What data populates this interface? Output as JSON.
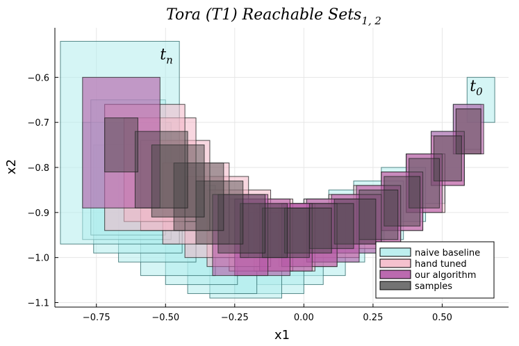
{
  "chart_data": {
    "type": "rectangles",
    "title": "Tora (T1) Reachable Sets",
    "title_subscript": "1, 2",
    "xlabel": "x1",
    "ylabel": "x2",
    "xlim": [
      -0.9,
      0.74
    ],
    "ylim": [
      -1.11,
      -0.49
    ],
    "xticks": [
      -0.75,
      -0.5,
      -0.25,
      0.0,
      0.25,
      0.5
    ],
    "xtick_labels": [
      "−0.75",
      "−0.50",
      "−0.25",
      "0.00",
      "0.25",
      "0.50"
    ],
    "yticks": [
      -0.6,
      -0.7,
      -0.8,
      -0.9,
      -1.0,
      -1.1
    ],
    "ytick_labels": [
      "−0.6",
      "−0.7",
      "−0.8",
      "−0.9",
      "−1.0",
      "−1.1"
    ],
    "grid": true,
    "legend_position": "bottom-right",
    "colors": {
      "naive": "#b2ecec",
      "naive_edge": "#2f6b6b",
      "hand": "#f3b6c6",
      "ours": "#b45aa6",
      "samples": "#444444",
      "edge": "#222222"
    },
    "annotations": [
      {
        "text": "t",
        "sub": "n",
        "x": -0.52,
        "y": -0.56
      },
      {
        "text": "t",
        "sub": "0",
        "x": 0.6,
        "y": -0.63
      }
    ],
    "series": [
      {
        "name": "naive baseline",
        "color_key": "naive",
        "opacity": 0.55,
        "rects": [
          [
            0.59,
            0.69,
            -0.7,
            -0.6
          ],
          [
            0.54,
            0.64,
            -0.76,
            -0.66
          ],
          [
            0.46,
            0.58,
            -0.83,
            -0.72
          ],
          [
            0.37,
            0.51,
            -0.88,
            -0.77
          ],
          [
            0.28,
            0.44,
            -0.92,
            -0.8
          ],
          [
            0.18,
            0.36,
            -0.96,
            -0.83
          ],
          [
            0.09,
            0.29,
            -0.99,
            -0.85
          ],
          [
            0.0,
            0.22,
            -1.01,
            -0.87
          ],
          [
            -0.08,
            0.15,
            -1.04,
            -0.88
          ],
          [
            -0.17,
            0.07,
            -1.06,
            -0.89
          ],
          [
            -0.25,
            0.0,
            -1.08,
            -0.9
          ],
          [
            -0.34,
            -0.08,
            -1.09,
            -0.9
          ],
          [
            -0.42,
            -0.17,
            -1.08,
            -0.89
          ],
          [
            -0.5,
            -0.24,
            -1.06,
            -0.87
          ],
          [
            -0.59,
            -0.32,
            -1.04,
            -0.84
          ],
          [
            -0.67,
            -0.39,
            -1.01,
            -0.8
          ],
          [
            -0.76,
            -0.44,
            -0.99,
            -0.75
          ],
          [
            -0.8,
            -0.48,
            -0.96,
            -0.7
          ],
          [
            -0.77,
            -0.5,
            -0.95,
            -0.65
          ],
          [
            -0.88,
            -0.45,
            -0.97,
            -0.52
          ]
        ]
      },
      {
        "name": "hand tuned",
        "color_key": "hand",
        "opacity": 0.55,
        "rects": [
          [
            0.55,
            0.64,
            -0.77,
            -0.67
          ],
          [
            0.46,
            0.58,
            -0.84,
            -0.73
          ],
          [
            0.37,
            0.51,
            -0.9,
            -0.77
          ],
          [
            0.28,
            0.43,
            -0.94,
            -0.81
          ],
          [
            0.18,
            0.35,
            -0.97,
            -0.84
          ],
          [
            0.09,
            0.28,
            -0.98,
            -0.86
          ],
          [
            0.0,
            0.2,
            -1.0,
            -0.87
          ],
          [
            -0.09,
            0.12,
            -1.02,
            -0.88
          ],
          [
            -0.18,
            0.04,
            -1.03,
            -0.88
          ],
          [
            -0.27,
            -0.04,
            -1.03,
            -0.87
          ],
          [
            -0.35,
            -0.12,
            -1.02,
            -0.85
          ],
          [
            -0.43,
            -0.2,
            -1.0,
            -0.82
          ],
          [
            -0.51,
            -0.27,
            -0.97,
            -0.79
          ],
          [
            -0.59,
            -0.34,
            -0.94,
            -0.74
          ],
          [
            -0.65,
            -0.39,
            -0.92,
            -0.69
          ],
          [
            -0.72,
            -0.43,
            -0.94,
            -0.66
          ]
        ]
      },
      {
        "name": "our algorithm",
        "color_key": "ours",
        "opacity": 0.6,
        "rects": [
          [
            0.54,
            0.65,
            -0.77,
            -0.66
          ],
          [
            0.46,
            0.58,
            -0.84,
            -0.72
          ],
          [
            0.37,
            0.5,
            -0.9,
            -0.77
          ],
          [
            0.28,
            0.43,
            -0.94,
            -0.81
          ],
          [
            0.19,
            0.35,
            -0.97,
            -0.84
          ],
          [
            0.1,
            0.28,
            -0.99,
            -0.86
          ],
          [
            0.01,
            0.2,
            -1.01,
            -0.87
          ],
          [
            -0.08,
            0.12,
            -1.02,
            -0.88
          ],
          [
            -0.16,
            0.03,
            -1.03,
            -0.88
          ],
          [
            -0.25,
            -0.05,
            -1.04,
            -0.87
          ],
          [
            -0.33,
            -0.13,
            -1.04,
            -0.86
          ],
          [
            -0.8,
            -0.52,
            -0.89,
            -0.6
          ]
        ]
      },
      {
        "name": "samples",
        "color_key": "samples",
        "opacity": 0.45,
        "rects": [
          [
            0.55,
            0.64,
            -0.77,
            -0.67
          ],
          [
            0.47,
            0.57,
            -0.83,
            -0.73
          ],
          [
            0.38,
            0.49,
            -0.89,
            -0.78
          ],
          [
            0.29,
            0.42,
            -0.93,
            -0.82
          ],
          [
            0.2,
            0.34,
            -0.96,
            -0.85
          ],
          [
            0.11,
            0.26,
            -0.97,
            -0.87
          ],
          [
            0.02,
            0.18,
            -0.98,
            -0.88
          ],
          [
            -0.07,
            0.1,
            -0.99,
            -0.89
          ],
          [
            -0.15,
            0.02,
            -1.0,
            -0.89
          ],
          [
            -0.23,
            -0.06,
            -1.0,
            -0.88
          ],
          [
            -0.31,
            -0.14,
            -0.99,
            -0.86
          ],
          [
            -0.39,
            -0.22,
            -0.97,
            -0.83
          ],
          [
            -0.47,
            -0.29,
            -0.94,
            -0.79
          ],
          [
            -0.55,
            -0.36,
            -0.91,
            -0.75
          ],
          [
            -0.61,
            -0.42,
            -0.89,
            -0.72
          ],
          [
            -0.72,
            -0.6,
            -0.81,
            -0.69
          ]
        ]
      }
    ]
  }
}
